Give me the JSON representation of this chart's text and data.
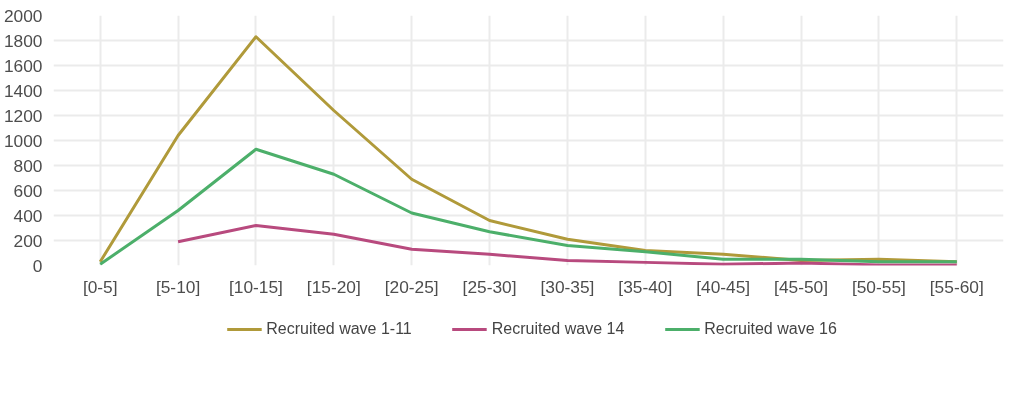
{
  "chart_data": {
    "type": "line",
    "categories": [
      "[0-5]",
      "[5-10]",
      "[10-15]",
      "[15-20]",
      "[20-25]",
      "[25-30]",
      "[30-35]",
      "[35-40]",
      "[40-45]",
      "[45-50]",
      "[50-55]",
      "[55-60]"
    ],
    "series": [
      {
        "name": "Recruited wave 1-11",
        "color": "#b09a3a",
        "values": [
          30,
          1040,
          1830,
          1240,
          690,
          360,
          210,
          120,
          90,
          40,
          50,
          30
        ]
      },
      {
        "name": "Recruited wave 14",
        "color": "#b84a7e",
        "values": [
          null,
          190,
          320,
          250,
          130,
          90,
          40,
          25,
          10,
          20,
          5,
          5
        ]
      },
      {
        "name": "Recruited wave 16",
        "color": "#4caf6a",
        "values": [
          10,
          440,
          930,
          730,
          420,
          270,
          160,
          110,
          50,
          50,
          30,
          30
        ]
      }
    ],
    "ylim": [
      0,
      2000
    ],
    "yticks": [
      0,
      200,
      400,
      600,
      800,
      1000,
      1200,
      1400,
      1600,
      1800,
      2000
    ],
    "grid": true,
    "legend": "bottom",
    "line_style": "solid",
    "marker": "none"
  }
}
